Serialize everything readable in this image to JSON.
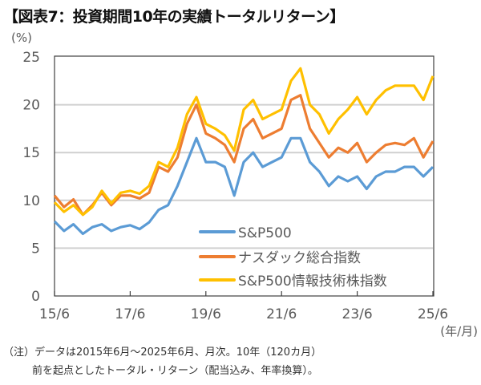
{
  "title": "【図表7：投資期間10年の実績トータルリターン】",
  "notes": [
    "（注）データは2015年6月～2025年6月、月次。10年（120カ月）",
    "前を起点としたトータル・リターン（配当込み、年率換算）。"
  ],
  "chart_data": {
    "type": "line",
    "title": "【図表7：投資期間10年の実績トータルリターン】",
    "ylabel": "(%)",
    "xlabel": "(年/月)",
    "ylim": [
      0,
      25
    ],
    "yticks": [
      0,
      5,
      10,
      15,
      20,
      25
    ],
    "xticks": [
      "15/6",
      "17/6",
      "19/6",
      "21/6",
      "23/6",
      "25/6"
    ],
    "grid": true,
    "legend_position": "bottom-center",
    "x": [
      "2015/06",
      "2015/09",
      "2015/12",
      "2016/03",
      "2016/06",
      "2016/09",
      "2016/12",
      "2017/03",
      "2017/06",
      "2017/09",
      "2017/12",
      "2018/03",
      "2018/06",
      "2018/09",
      "2018/12",
      "2019/03",
      "2019/06",
      "2019/09",
      "2019/12",
      "2020/03",
      "2020/06",
      "2020/09",
      "2020/12",
      "2021/03",
      "2021/06",
      "2021/09",
      "2021/12",
      "2022/03",
      "2022/06",
      "2022/09",
      "2022/12",
      "2023/03",
      "2023/06",
      "2023/09",
      "2023/12",
      "2024/03",
      "2024/06",
      "2024/09",
      "2024/12",
      "2025/03",
      "2025/06"
    ],
    "series": [
      {
        "name": "S&P500",
        "color": "#5B9BD5",
        "values": [
          7.8,
          6.8,
          7.5,
          6.5,
          7.2,
          7.5,
          6.8,
          7.2,
          7.4,
          7.0,
          7.7,
          9.0,
          9.5,
          11.5,
          14.0,
          16.5,
          14.0,
          14.0,
          13.5,
          10.5,
          14.0,
          15.0,
          13.5,
          14.0,
          14.5,
          16.5,
          16.5,
          14.0,
          13.0,
          11.5,
          12.5,
          12.0,
          12.5,
          11.2,
          12.5,
          13.0,
          13.0,
          13.5,
          13.5,
          12.5,
          13.5
        ]
      },
      {
        "name": "ナスダック総合指数",
        "color": "#ED7D31",
        "values": [
          10.5,
          9.3,
          10.1,
          8.5,
          9.5,
          10.8,
          9.5,
          10.5,
          10.5,
          10.2,
          10.8,
          13.5,
          13.0,
          14.5,
          18.0,
          20.0,
          17.0,
          16.5,
          15.8,
          14.0,
          17.5,
          18.5,
          16.5,
          17.0,
          17.5,
          20.5,
          21.0,
          17.5,
          16.0,
          14.5,
          15.5,
          15.0,
          16.0,
          14.0,
          15.0,
          15.8,
          16.0,
          15.8,
          16.5,
          14.5,
          16.2
        ]
      },
      {
        "name": "S&P500情報技術株指数",
        "color": "#FFC000",
        "values": [
          9.8,
          8.8,
          9.5,
          8.5,
          9.3,
          11.0,
          9.7,
          10.8,
          11.0,
          10.7,
          11.5,
          14.0,
          13.5,
          15.5,
          19.0,
          20.8,
          18.0,
          17.5,
          16.8,
          15.2,
          19.5,
          20.5,
          18.5,
          19.0,
          19.5,
          22.5,
          23.8,
          20.0,
          19.0,
          17.0,
          18.5,
          19.5,
          20.8,
          19.0,
          20.5,
          21.5,
          22.0,
          22.0,
          22.0,
          20.5,
          23.0
        ]
      }
    ]
  }
}
